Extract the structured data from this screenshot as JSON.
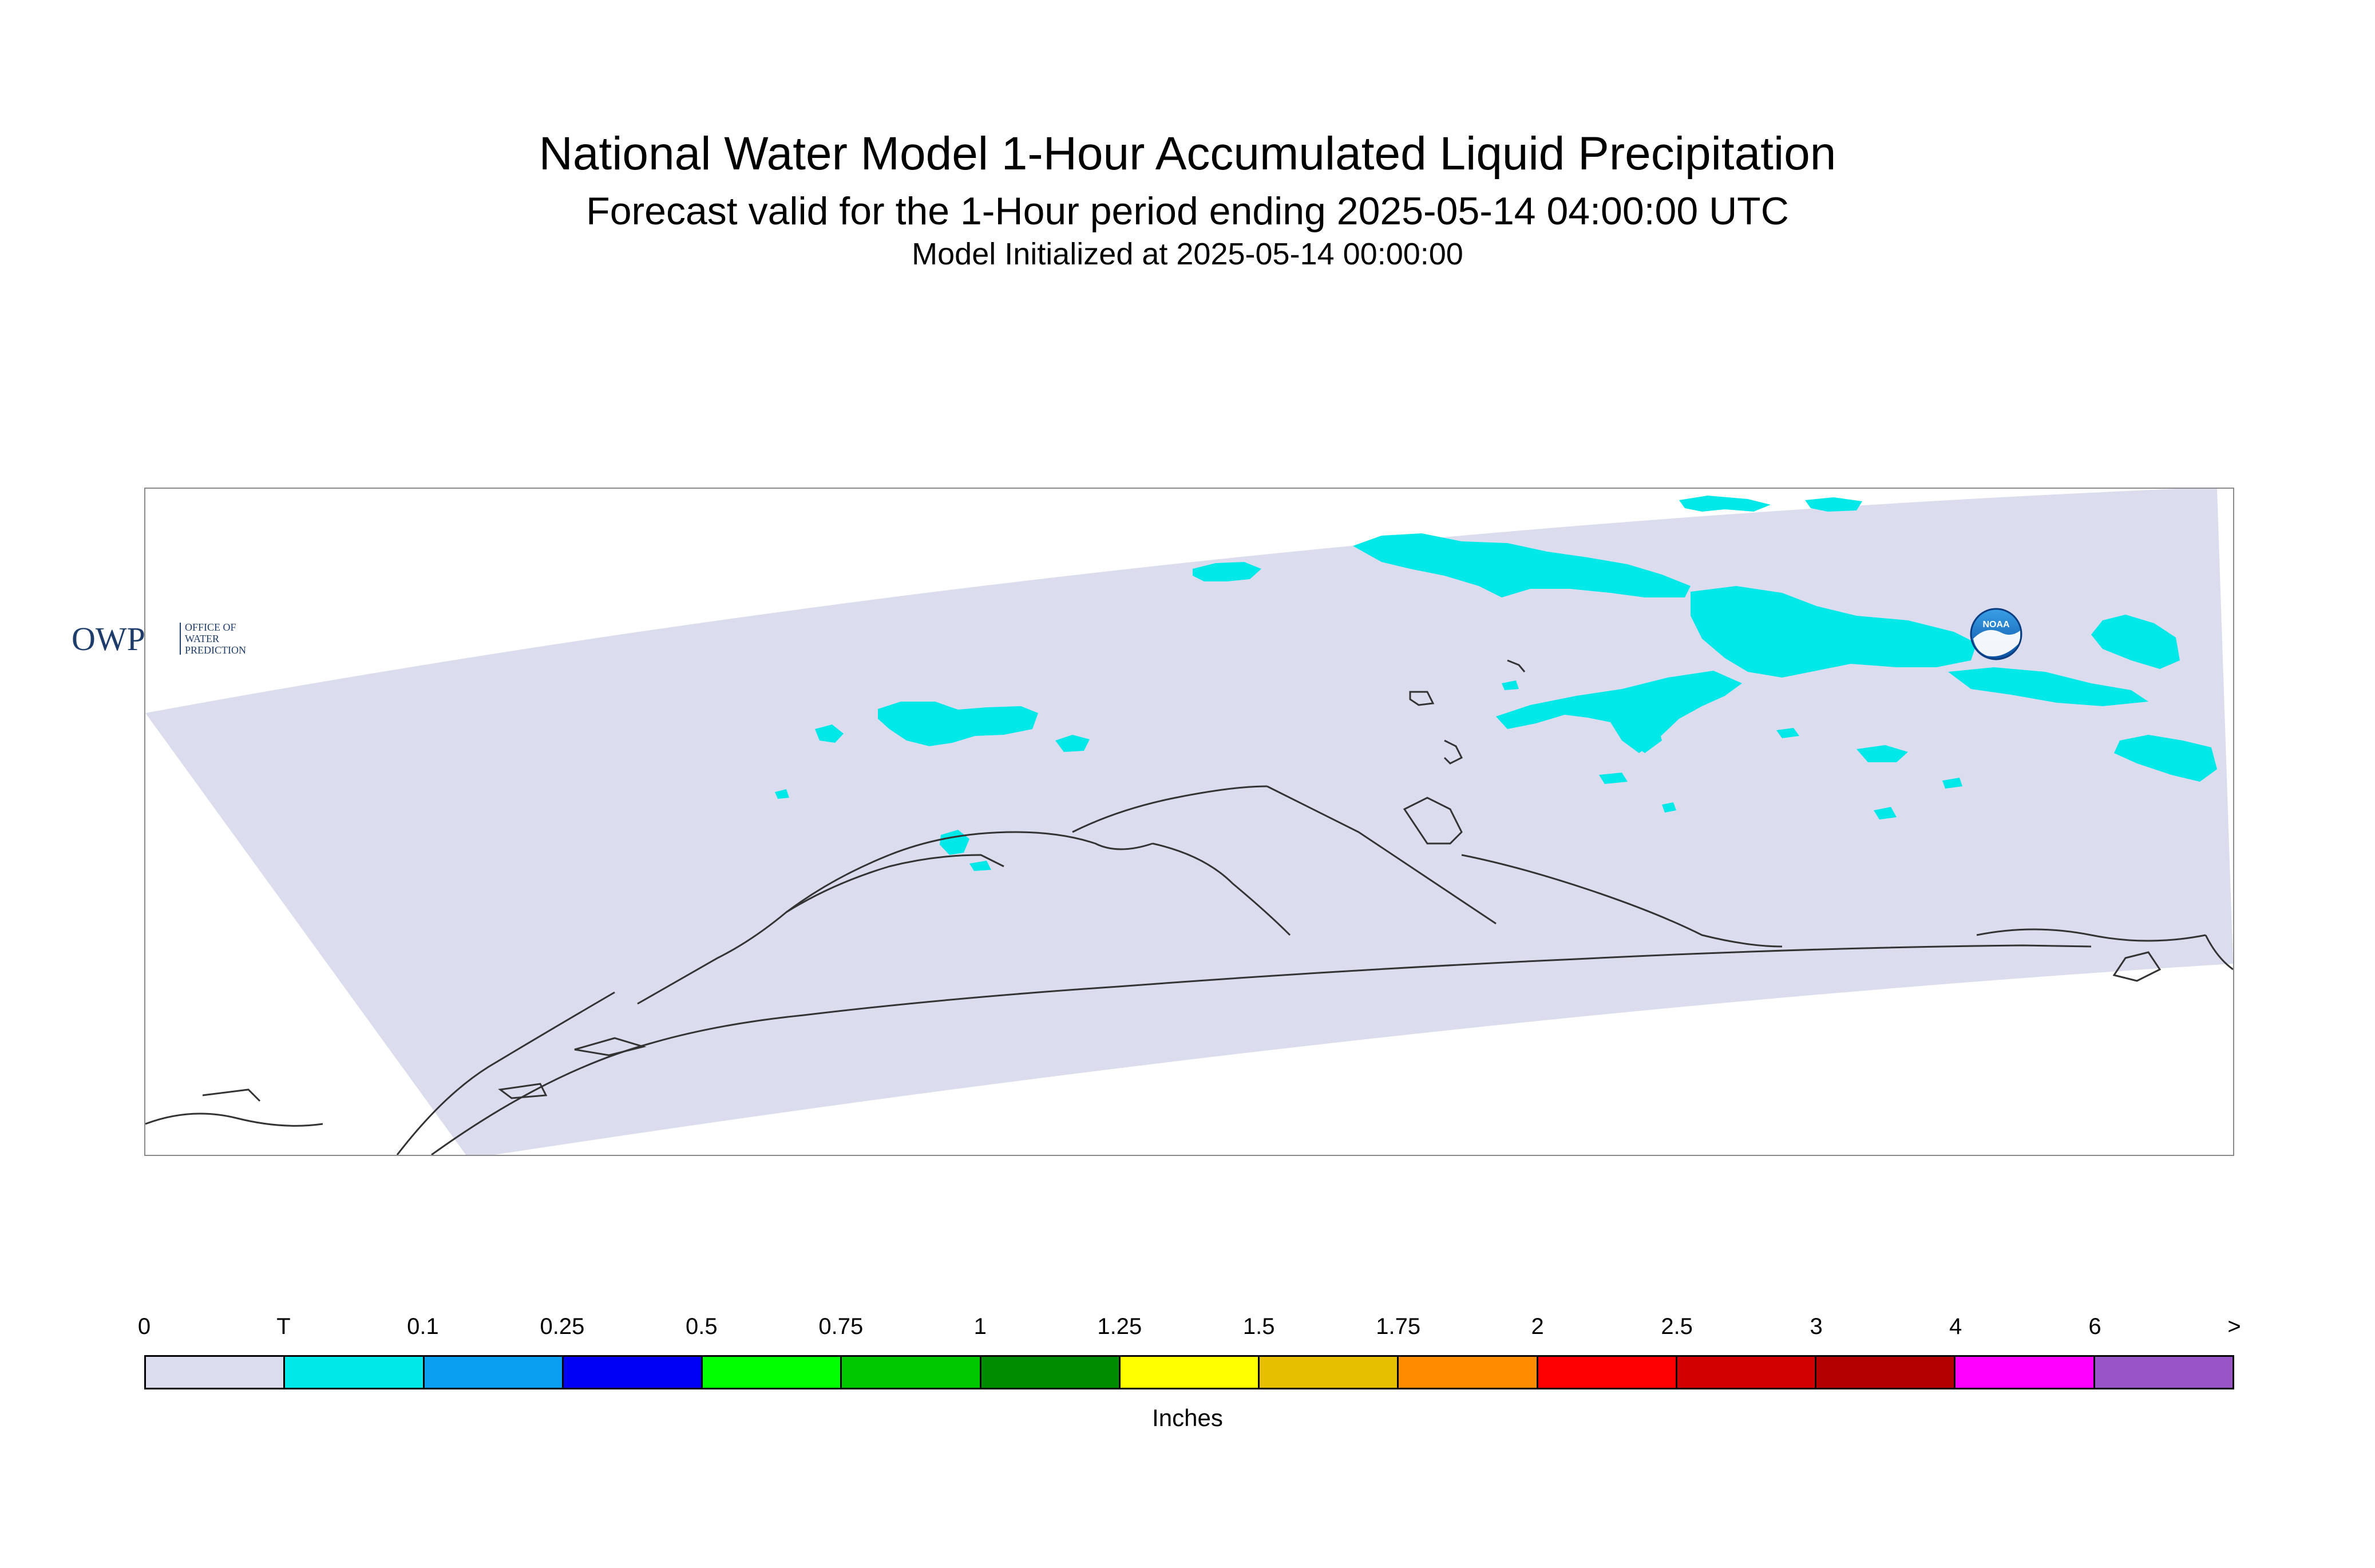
{
  "header": {
    "title": "National Water Model 1-Hour Accumulated Liquid Precipitation",
    "subtitle": "Forecast valid for the 1-Hour period ending 2025-05-14 04:00:00 UTC",
    "init_line": "Model Initialized at 2025-05-14 00:00:00"
  },
  "map": {
    "domain_fill_color": "#dcdcef",
    "precip_color": "#00e8e8",
    "coastline_color": "#333333"
  },
  "logos": {
    "owp_letters": "OWP",
    "owp_line1": "OFFICE OF",
    "owp_line2": "WATER",
    "owp_line3": "PREDICTION",
    "noaa_text": "NOAA"
  },
  "legend": {
    "unit": "Inches",
    "labels": [
      "0",
      "T",
      "0.1",
      "0.25",
      "0.5",
      "0.75",
      "1",
      "1.25",
      "1.5",
      "1.75",
      "2",
      "2.5",
      "3",
      "4",
      "6",
      ">"
    ],
    "colors": [
      "#dcdcef",
      "#00e8e8",
      "#0a9ff0",
      "#0000f5",
      "#00ff00",
      "#00c800",
      "#008c00",
      "#ffff00",
      "#e6c000",
      "#ff8c00",
      "#ff0000",
      "#d20000",
      "#b40000",
      "#ff00ff",
      "#9955c8"
    ]
  }
}
